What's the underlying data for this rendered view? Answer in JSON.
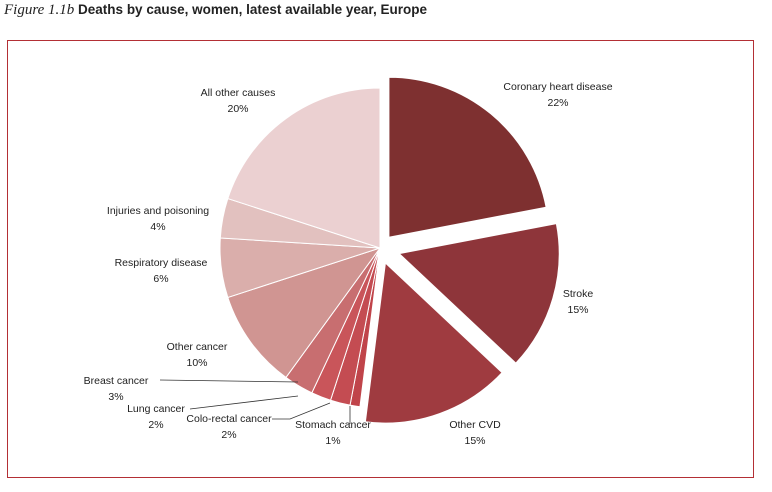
{
  "figure": {
    "number": "Figure 1.1b",
    "title": "Deaths by cause, women, latest available year, Europe"
  },
  "chart_data": {
    "type": "pie",
    "title": "Deaths by cause, women, latest available year, Europe",
    "slices": [
      {
        "label": "Coronary heart disease",
        "value": 22,
        "value_label": "22%",
        "color": "#7e3030",
        "exploded": true
      },
      {
        "label": "Stroke",
        "value": 15,
        "value_label": "15%",
        "color": "#8e353a",
        "exploded": true
      },
      {
        "label": "Other CVD",
        "value": 15,
        "value_label": "15%",
        "color": "#9f3b40",
        "exploded": true
      },
      {
        "label": "Stomach cancer",
        "value": 1,
        "value_label": "1%",
        "color": "#c0444a",
        "exploded": false
      },
      {
        "label": "Colo-rectal cancer",
        "value": 2,
        "value_label": "2%",
        "color": "#c44c52",
        "exploded": false
      },
      {
        "label": "Lung cancer",
        "value": 2,
        "value_label": "2%",
        "color": "#c9555a",
        "exploded": false
      },
      {
        "label": "Breast cancer",
        "value": 3,
        "value_label": "3%",
        "color": "#c86e70",
        "exploded": false
      },
      {
        "label": "Other cancer",
        "value": 10,
        "value_label": "10%",
        "color": "#d09592",
        "exploded": false
      },
      {
        "label": "Respiratory disease",
        "value": 6,
        "value_label": "6%",
        "color": "#daaeab",
        "exploded": false
      },
      {
        "label": "Injuries and poisoning",
        "value": 4,
        "value_label": "4%",
        "color": "#e2c1bf",
        "exploded": false
      },
      {
        "label": "All other causes",
        "value": 20,
        "value_label": "20%",
        "color": "#ebd0d1",
        "exploded": false
      }
    ]
  }
}
